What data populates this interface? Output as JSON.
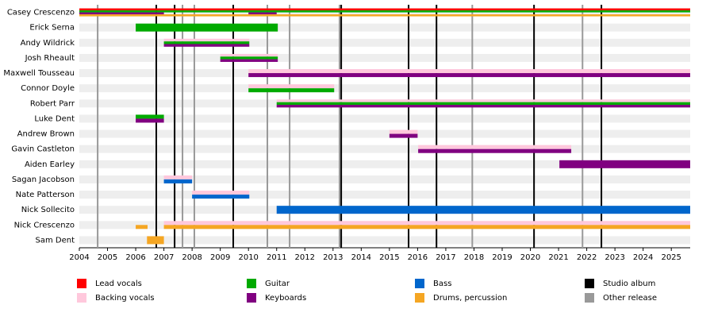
{
  "chart_data": {
    "type": "timeline",
    "categories": [
      "Casey Crescenzo",
      "Erick Serna",
      "Andy Wildrick",
      "Josh Rheault",
      "Maxwell Tousseau",
      "Connor Doyle",
      "Robert Parr",
      "Luke Dent",
      "Andrew Brown",
      "Gavin Castleton",
      "Aiden Earley",
      "Sagan Jacobson",
      "Nate Patterson",
      "Nick Sollecito",
      "Nick Crescenzo",
      "Sam Dent"
    ],
    "xlim": [
      2004,
      2025.67
    ],
    "xticks": [
      2004,
      2005,
      2006,
      2007,
      2008,
      2009,
      2010,
      2011,
      2012,
      2013,
      2014,
      2015,
      2016,
      2017,
      2018,
      2019,
      2020,
      2021,
      2022,
      2023,
      2024,
      2025
    ],
    "series": [
      {
        "name": "Lead vocals",
        "color": "#ff0000",
        "values": [
          [
            [
              2004,
              2025.67
            ]
          ],
          null,
          null,
          null,
          null,
          null,
          null,
          null,
          null,
          null,
          null,
          null,
          null,
          null,
          null,
          null
        ]
      },
      {
        "name": "Backing vocals",
        "color": "#ffc8dc",
        "values": [
          null,
          null,
          [
            [
              2007,
              2010.03
            ]
          ],
          [
            [
              2009,
              2011.04
            ]
          ],
          [
            [
              2010,
              2025.67
            ]
          ],
          [
            [
              2010,
              2013.04
            ]
          ],
          [
            [
              2011,
              2025.67
            ]
          ],
          null,
          [
            [
              2015,
              2016
            ]
          ],
          [
            [
              2016.02,
              2021.45
            ]
          ],
          null,
          [
            [
              2007,
              2008
            ]
          ],
          [
            [
              2008,
              2010.03
            ]
          ],
          null,
          [
            [
              2007,
              2025.67
            ]
          ],
          null
        ]
      },
      {
        "name": "Guitar",
        "color": "#00aa00",
        "values": [
          [
            [
              2004,
              2025.67
            ]
          ],
          [
            [
              2006,
              2011.04
            ]
          ],
          [
            [
              2007,
              2010.03
            ]
          ],
          [
            [
              2009,
              2011.04
            ]
          ],
          null,
          [
            [
              2010,
              2013.04
            ]
          ],
          [
            [
              2011,
              2025.67
            ]
          ],
          [
            [
              2006,
              2007
            ]
          ],
          null,
          null,
          null,
          null,
          null,
          null,
          null,
          null
        ]
      },
      {
        "name": "Keyboards",
        "color": "#800080",
        "values": [
          [
            [
              2004,
              2007
            ],
            [
              2010,
              2011
            ]
          ],
          null,
          [
            [
              2007,
              2010.03
            ]
          ],
          [
            [
              2009,
              2011.04
            ]
          ],
          [
            [
              2010,
              2025.67
            ]
          ],
          null,
          [
            [
              2011,
              2025.67
            ]
          ],
          [
            [
              2006,
              2007
            ]
          ],
          [
            [
              2015,
              2016
            ]
          ],
          [
            [
              2016.02,
              2021.45
            ]
          ],
          [
            [
              2021.03,
              2025.67
            ]
          ],
          null,
          null,
          null,
          null,
          null
        ]
      },
      {
        "name": "Bass",
        "color": "#0066cc",
        "values": [
          null,
          null,
          null,
          null,
          null,
          null,
          null,
          null,
          null,
          null,
          null,
          [
            [
              2007,
              2008
            ]
          ],
          [
            [
              2008,
              2010.03
            ]
          ],
          [
            [
              2011,
              2025.67
            ]
          ],
          null,
          null
        ]
      },
      {
        "name": "Drums, percussion",
        "color": "#f5a623",
        "values": [
          [
            [
              2004,
              2025.67
            ]
          ],
          null,
          null,
          null,
          null,
          null,
          null,
          null,
          null,
          null,
          null,
          null,
          null,
          null,
          [
            [
              2006,
              2006.42
            ],
            [
              2007,
              2025.67
            ]
          ],
          [
            [
              2006.4,
              2007
            ]
          ]
        ]
      }
    ],
    "events": [
      {
        "name": "Studio album",
        "color": "#000000",
        "x": [
          2006.73,
          2007.38,
          2009.46,
          2013.29,
          2015.68,
          2016.67,
          2020.13,
          2022.52
        ]
      },
      {
        "name": "Other release",
        "color": "#999999",
        "x": [
          2004.65,
          2007.66,
          2008.08,
          2010.67,
          2011.46,
          2013.23,
          2017.94,
          2021.85
        ]
      }
    ]
  }
}
